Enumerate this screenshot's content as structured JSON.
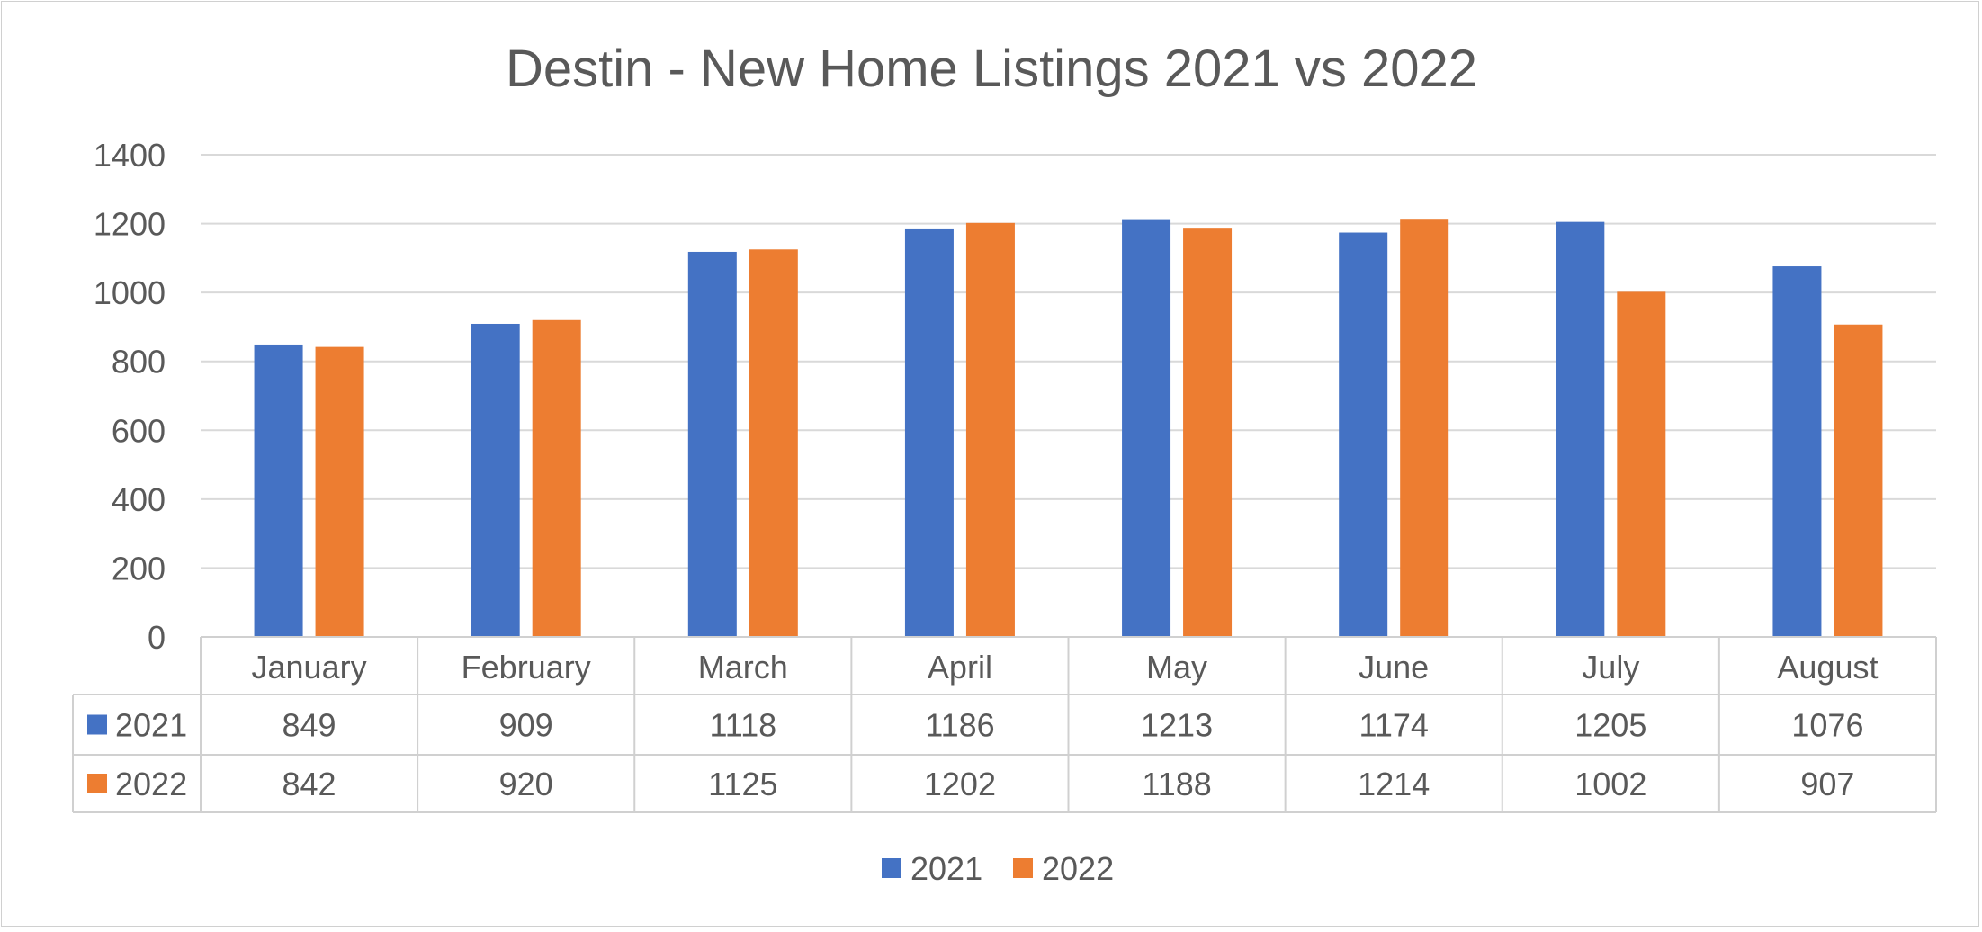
{
  "chart_data": {
    "type": "bar",
    "title": "Destin - New Home Listings 2021 vs 2022",
    "categories": [
      "January",
      "February",
      "March",
      "April",
      "May",
      "June",
      "July",
      "August"
    ],
    "series": [
      {
        "name": "2021",
        "color": "#4472C4",
        "values": [
          849,
          909,
          1118,
          1186,
          1213,
          1174,
          1205,
          1076
        ]
      },
      {
        "name": "2022",
        "color": "#ED7D31",
        "values": [
          842,
          920,
          1125,
          1202,
          1188,
          1214,
          1002,
          907
        ]
      }
    ],
    "ylim": [
      0,
      1400
    ],
    "yticks": [
      0,
      200,
      400,
      600,
      800,
      1000,
      1200,
      1400
    ],
    "grid": true,
    "data_table": true,
    "legend_position": "bottom"
  }
}
